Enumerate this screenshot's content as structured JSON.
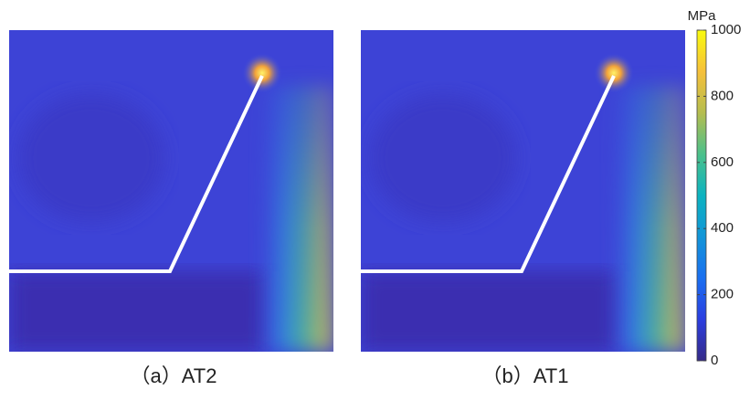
{
  "panels": [
    {
      "caption": "（a）AT2"
    },
    {
      "caption": "（b）AT1"
    }
  ],
  "colorbar": {
    "label": "MPa",
    "lim": [
      0,
      1000
    ],
    "ticks": [
      0,
      200,
      400,
      600,
      800,
      1000
    ]
  }
}
